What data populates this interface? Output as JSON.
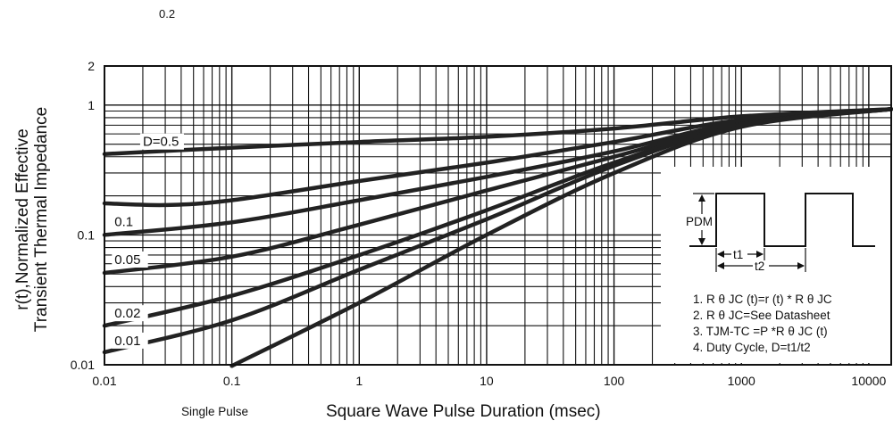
{
  "chart_data": {
    "type": "line",
    "xscale": "log",
    "yscale": "log",
    "xlim": [
      0.01,
      15000
    ],
    "ylim": [
      0.01,
      2
    ],
    "xlabel": "Square Wave Pulse Duration (msec)",
    "ylabel": [
      "r(t),Normalized Effective",
      "Transient Thermal Impedance"
    ],
    "x_tick_labels": [
      "0.01",
      "0.1",
      "1",
      "10",
      "100",
      "1000",
      "10000"
    ],
    "x_ticks": [
      0.01,
      0.1,
      1,
      10,
      100,
      1000,
      10000
    ],
    "y_tick_labels": [
      "0.01",
      "0.1",
      "1",
      "2"
    ],
    "y_ticks": [
      0.01,
      0.1,
      1,
      2
    ],
    "grid": true,
    "stray_label_top": "0.2",
    "single_pulse_label": "Single Pulse",
    "series": [
      {
        "name": "D=0.5",
        "x": [
          0.01,
          0.1,
          1,
          10,
          100,
          1000,
          15000
        ],
        "values": [
          0.42,
          0.47,
          0.52,
          0.57,
          0.66,
          0.82,
          0.93
        ]
      },
      {
        "name": "0.2",
        "x": [
          0.01,
          0.03,
          0.1,
          1,
          10,
          100,
          1000,
          15000
        ],
        "values": [
          0.175,
          0.17,
          0.185,
          0.26,
          0.36,
          0.52,
          0.77,
          0.93
        ]
      },
      {
        "name": "0.1",
        "x": [
          0.01,
          0.1,
          1,
          10,
          100,
          1000,
          15000
        ],
        "values": [
          0.1,
          0.125,
          0.185,
          0.28,
          0.44,
          0.74,
          0.93
        ]
      },
      {
        "name": "0.05",
        "x": [
          0.01,
          0.1,
          1,
          10,
          100,
          1000,
          15000
        ],
        "values": [
          0.051,
          0.068,
          0.12,
          0.22,
          0.4,
          0.72,
          0.93
        ]
      },
      {
        "name": "0.02",
        "x": [
          0.01,
          0.1,
          1,
          10,
          100,
          1000,
          15000
        ],
        "values": [
          0.02,
          0.034,
          0.07,
          0.155,
          0.36,
          0.71,
          0.93
        ]
      },
      {
        "name": "0.01",
        "x": [
          0.01,
          0.1,
          1,
          10,
          100,
          1000,
          15000
        ],
        "values": [
          0.0125,
          0.022,
          0.054,
          0.132,
          0.34,
          0.7,
          0.93
        ]
      },
      {
        "name": "Single Pulse",
        "x": [
          0.1,
          1,
          10,
          100,
          1000,
          15000
        ],
        "values": [
          0.0098,
          0.03,
          0.1,
          0.3,
          0.68,
          0.93
        ]
      }
    ],
    "curve_labels": [
      "D=0.5",
      "0.1",
      "0.05",
      "0.02",
      "0.01"
    ],
    "inset": {
      "pdm_label": "PDM",
      "t1_label": "t1",
      "t2_label": "t2",
      "notes": [
        "1. R θ JC (t)=r (t) * R θ JC",
        "2. R θ JC=See Datasheet",
        "3. TJM-TC =P *R θ JC (t)",
        "4. Duty Cycle, D=t1/t2"
      ]
    }
  }
}
